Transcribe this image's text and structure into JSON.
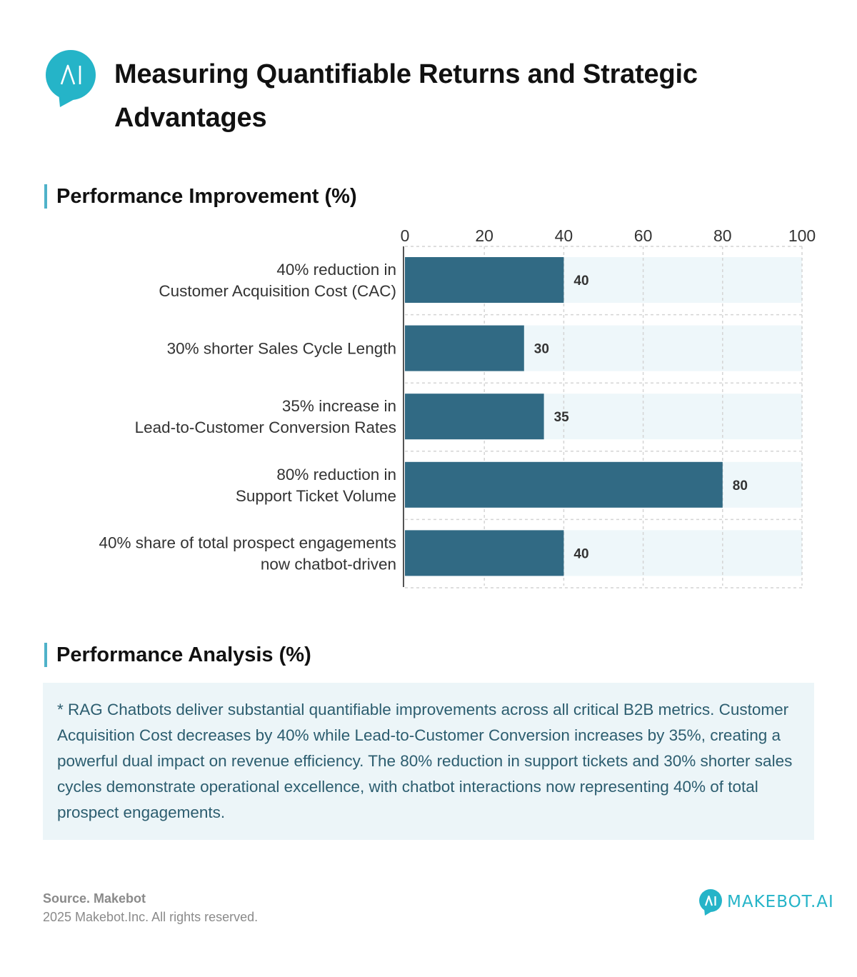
{
  "header": {
    "logo_icon": "ai-speech-bubble-icon",
    "title": "Measuring Quantifiable Returns and Strategic Advantages"
  },
  "sections": {
    "chart_heading": "Performance Improvement (%)",
    "analysis_heading": "Performance Analysis (%)"
  },
  "analysis": {
    "text": "* RAG Chatbots deliver substantial quantifiable improvements across all critical B2B metrics. Customer Acquisition Cost decreases by 40% while Lead-to-Customer Conversion increases by 35%, creating a powerful dual impact on revenue efficiency. The 80% reduction in support tickets and 30% shorter sales cycles demonstrate operational excellence, with chatbot interactions now representing 40% of total prospect engagements."
  },
  "footer": {
    "source": "Source. Makebot",
    "copyright": "2025 Makebot.Inc. All rights reserved.",
    "brand": "MAKEBOT.AI",
    "brand_icon": "ai-speech-bubble-icon"
  },
  "colors": {
    "bar": "#316a84",
    "track": "#eef7fa",
    "accent": "#4fb2c9",
    "brand": "#25b4c8",
    "analysis_text": "#2c5d6f"
  },
  "chart_data": {
    "type": "bar",
    "orientation": "horizontal",
    "categories": [
      [
        "40% reduction in",
        "Customer Acquisition Cost (CAC)"
      ],
      [
        "30% shorter Sales Cycle Length"
      ],
      [
        "35% increase in",
        "Lead-to-Customer Conversion Rates"
      ],
      [
        "80% reduction in",
        "Support Ticket Volume"
      ],
      [
        "40% share of total prospect engagements",
        "now chatbot-driven"
      ]
    ],
    "values": [
      40,
      30,
      35,
      80,
      40
    ],
    "data_labels": [
      "40",
      "30",
      "35",
      "80",
      "40"
    ],
    "xlim": [
      0,
      100
    ],
    "ticks": [
      "0",
      "20",
      "40",
      "60",
      "80",
      "100"
    ],
    "tick_values": [
      0,
      20,
      40,
      60,
      80,
      100
    ],
    "axis_position": "top",
    "grid": true,
    "legend": "none"
  }
}
